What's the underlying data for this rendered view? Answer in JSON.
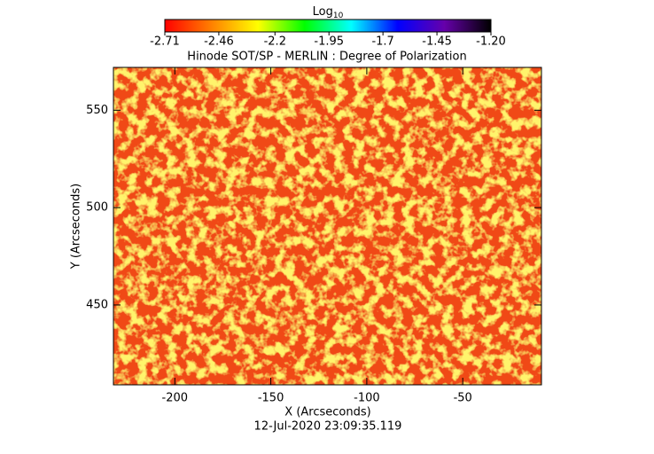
{
  "chart_data": {
    "type": "heatmap",
    "title": "Hinode SOT/SP - MERLIN : Degree of Polarization",
    "xlabel": "X (Arcseconds)",
    "ylabel": "Y (Arcseconds)",
    "footer": "12-Jul-2020 23:09:35.119",
    "xlim": [
      -232,
      -9
    ],
    "ylim": [
      409,
      572
    ],
    "xticks": [
      -200,
      -150,
      -100,
      -50
    ],
    "yticks": [
      450,
      500,
      550
    ],
    "colorbar": {
      "label": "Log",
      "label_sub": "10",
      "clim": [
        -2.71,
        -1.2
      ],
      "ticks": [
        -2.71,
        -2.46,
        -2.2,
        -1.95,
        -1.7,
        -1.45,
        {
          "value": -1.2,
          "label": "-1.20"
        }
      ],
      "colors": [
        "#ff0000",
        "#ff8000",
        "#ffff00",
        "#00ff00",
        "#00ffff",
        "#0000ff",
        "#6600aa",
        "#000000"
      ]
    }
  }
}
